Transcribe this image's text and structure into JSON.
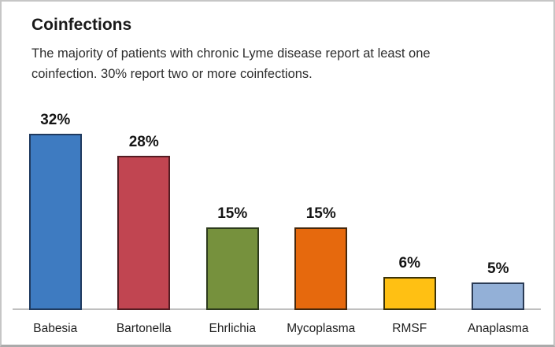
{
  "card": {
    "background": "#ffffff",
    "frame_border_color": "#c6c6c6"
  },
  "chart_data": {
    "type": "bar",
    "title": "Coinfections",
    "subtitle": "The majority of patients with chronic Lyme disease report at least one coinfection. 30% report two or more coinfections.",
    "subtitle_lines": [
      "The majority of patients with chronic Lyme disease report at least one",
      "coinfection. 30% report two or more coinfections."
    ],
    "categories": [
      "Babesia",
      "Bartonella",
      "Ehrlichia",
      "Mycoplasma",
      "RMSF",
      "Anaplasma"
    ],
    "values": [
      32,
      28,
      15,
      15,
      6,
      5
    ],
    "data_labels": [
      "32%",
      "28%",
      "15%",
      "15%",
      "6%",
      "5%"
    ],
    "bar_colors": [
      "#3e7bc1",
      "#c14551",
      "#76913d",
      "#e6690d",
      "#ffc013",
      "#93b0d7"
    ],
    "bar_border_colors": [
      "#1f3a5f",
      "#541c22",
      "#2c3a1c",
      "#46280c",
      "#3b3208",
      "#2b3b55"
    ],
    "xlabel": "",
    "ylabel": "",
    "ylim": [
      0,
      34
    ],
    "grid": false,
    "legend": false,
    "axis_line_color": "#bfbfbf",
    "value_label_color": "#141414",
    "category_label_color": "#1f1f1f"
  }
}
